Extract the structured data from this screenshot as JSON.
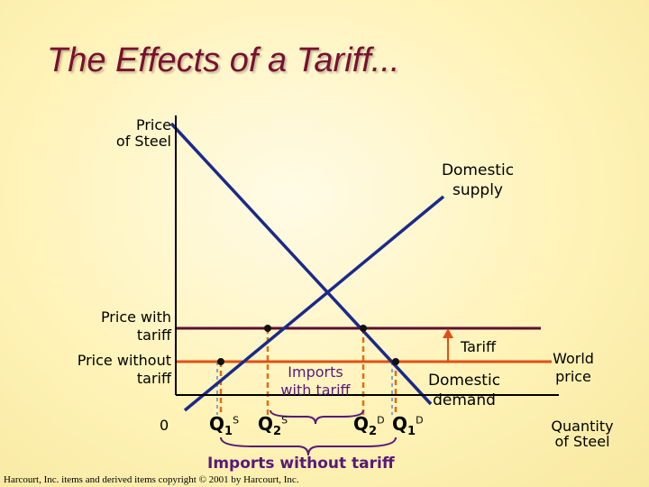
{
  "title": "The Effects of a Tariff...",
  "axes": {
    "y_label_line1": "Price",
    "y_label_line2": "of Steel",
    "x_label_line1": "Quantity",
    "x_label_line2": "of Steel",
    "origin": "0"
  },
  "curves": {
    "supply_line1": "Domestic",
    "supply_line2": "supply",
    "demand_line1": "Domestic",
    "demand_line2": "demand"
  },
  "prices": {
    "with_tariff_line1": "Price with",
    "with_tariff_line2": "tariff",
    "without_tariff_line1": "Price without",
    "without_tariff_line2": "tariff",
    "world_price_line1": "World",
    "world_price_line2": "price",
    "tariff": "Tariff"
  },
  "quantities": {
    "q1s_base": "Q",
    "q1s_sub": "1",
    "q1s_sup": "S",
    "q2s_base": "Q",
    "q2s_sub": "2",
    "q2s_sup": "S",
    "q2d_base": "Q",
    "q2d_sub": "2",
    "q2d_sup": "D",
    "q1d_base": "Q",
    "q1d_sub": "1",
    "q1d_sup": "D"
  },
  "annotations": {
    "imports_with_tariff_line1": "Imports",
    "imports_with_tariff_line2": "with tariff",
    "imports_without_tariff": "Imports without tariff"
  },
  "footer": "Harcourt, Inc. items and derived items copyright © 2001 by Harcourt, Inc.",
  "colors": {
    "title": "#7a1030",
    "curves": "#1a2a8a",
    "price_with_tariff_line": "#5a1030",
    "world_price_line": "#e05010",
    "dashes": "#e07010",
    "tariff_arrow": "#e05010",
    "imports_text": "#5a1878"
  }
}
